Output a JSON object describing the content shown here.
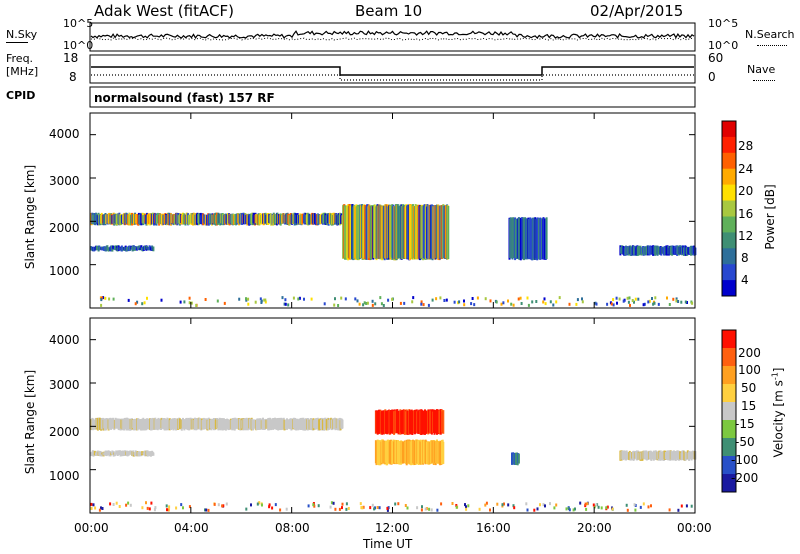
{
  "header": {
    "station": "Adak West (fitACF)",
    "beam": "Beam 10",
    "date": "02/Apr/2015"
  },
  "top_panel": {
    "nsky_label": "N.Sky",
    "nsky_ticks_left": [
      "10^5",
      "10^0"
    ],
    "nsearch_label": "N.Search",
    "nsearch_ticks_right": [
      "10^5",
      "10^0"
    ],
    "freq_label_line1": "Freq.",
    "freq_label_line2": "[MHz]",
    "freq_ticks": [
      "18",
      "8"
    ],
    "nave_label": "Nave",
    "nave_ticks": [
      "60",
      "0"
    ],
    "cpid_label": "CPID",
    "cpid_text": "normalsound (fast) 157 RF"
  },
  "x_axis": {
    "label": "Time UT",
    "ticks": [
      "00:00",
      "04:00",
      "08:00",
      "12:00",
      "16:00",
      "20:00",
      "00:00"
    ]
  },
  "chart_data": [
    {
      "type": "heatmap",
      "name": "power",
      "ylabel": "Slant Range [km]",
      "y_ticks": [
        "4000",
        "3000",
        "2000",
        "1000"
      ],
      "ylim": [
        0,
        4500
      ],
      "xlim": [
        "00:00",
        "24:00"
      ],
      "colorbar_label": "Power [dB]",
      "colorbar_ticks": [
        "28",
        "24",
        "20",
        "16",
        "12",
        "8",
        "4"
      ],
      "colorbar_colors": [
        "#0000cc",
        "#2848d0",
        "#2e6f9a",
        "#3f8f74",
        "#5fb05a",
        "#a8c840",
        "#ffe000",
        "#ffaa00",
        "#ff6000",
        "#ff2000",
        "#e00000"
      ],
      "regions": [
        {
          "start_h": 0.0,
          "end_h": 10.0,
          "range_km": [
            1900,
            2200
          ],
          "level": "moderate"
        },
        {
          "start_h": 0.0,
          "end_h": 2.5,
          "range_km": [
            1300,
            1450
          ],
          "level": "weak"
        },
        {
          "start_h": 10.0,
          "end_h": 14.2,
          "range_km": [
            1100,
            2400
          ],
          "level": "moderate"
        },
        {
          "start_h": 16.6,
          "end_h": 18.1,
          "range_km": [
            1100,
            2100
          ],
          "level": "weak"
        },
        {
          "start_h": 21.0,
          "end_h": 24.0,
          "range_km": [
            1200,
            1450
          ],
          "level": "weak"
        }
      ]
    },
    {
      "type": "heatmap",
      "name": "velocity",
      "ylabel": "Slant Range [km]",
      "y_ticks": [
        "4000",
        "3000",
        "2000",
        "1000"
      ],
      "ylim": [
        0,
        4500
      ],
      "xlim": [
        "00:00",
        "24:00"
      ],
      "colorbar_label_main": "Velocity [m s",
      "colorbar_label_exp": "-1",
      "colorbar_label_close": "]",
      "colorbar_ticks": [
        "200",
        "100",
        "50",
        "15",
        "-15",
        "-50",
        "-100",
        "-200"
      ],
      "colorbar_colors": [
        "#1a1aa0",
        "#2850c8",
        "#3f8f74",
        "#7cc840",
        "#c8c8c8",
        "#ffd040",
        "#ffa020",
        "#ff6010",
        "#ff1000"
      ],
      "regions": [
        {
          "start_h": 0.0,
          "end_h": 10.0,
          "range_km": [
            1900,
            2200
          ],
          "velocity": "near zero (ground scatter)"
        },
        {
          "start_h": 0.0,
          "end_h": 2.5,
          "range_km": [
            1300,
            1450
          ],
          "velocity": "near zero (ground scatter)"
        },
        {
          "start_h": 11.3,
          "end_h": 14.0,
          "range_km": [
            1800,
            2400
          ],
          "velocity": "-200"
        },
        {
          "start_h": 11.3,
          "end_h": 14.0,
          "range_km": [
            1100,
            1700
          ],
          "velocity": "-50"
        },
        {
          "start_h": 16.7,
          "end_h": 17.0,
          "range_km": [
            1100,
            1400
          ],
          "velocity": "100"
        },
        {
          "start_h": 21.0,
          "end_h": 24.0,
          "range_km": [
            1200,
            1450
          ],
          "velocity": "near zero (ground scatter)"
        }
      ]
    }
  ]
}
